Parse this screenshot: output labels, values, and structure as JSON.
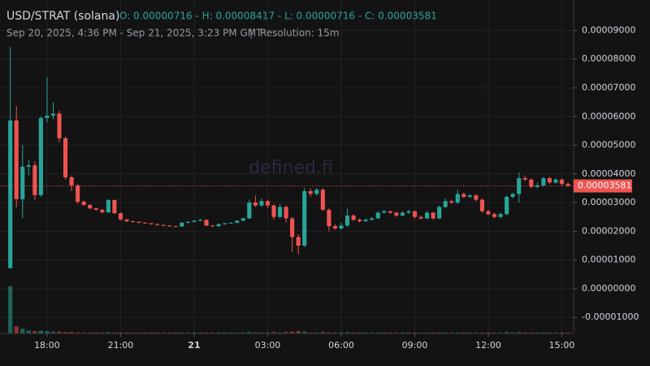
{
  "chart_data": {
    "type": "candlestick",
    "title": "USD/STRAT (solana)",
    "ohlc_text": "O: 0.00000716 - H: 0.00008417 - L: 0.00000716 - C: 0.00003581",
    "range_text": "Sep 20, 2025, 4:36 PM - Sep 21, 2025, 3:23 PM GMT",
    "separator": "|",
    "resolution": "Resolution: 15m",
    "watermark": "defined.fi",
    "up_color": "#26a69a",
    "down_color": "#ef5350",
    "grid": true,
    "x": [
      16.5,
      16.75,
      17,
      17.25,
      17.5,
      17.75,
      18,
      18.25,
      18.5,
      18.75,
      19,
      19.25,
      19.5,
      19.75,
      20,
      20.25,
      20.5,
      20.75,
      21,
      21.25,
      21.5,
      21.75,
      22,
      22.25,
      22.5,
      22.75,
      23,
      23.25,
      23.5,
      23.75,
      24,
      24.25,
      24.5,
      24.75,
      25,
      25.25,
      25.5,
      25.75,
      26,
      26.25,
      26.5,
      26.75,
      27,
      27.25,
      27.5,
      27.75,
      28,
      28.25,
      28.5,
      28.75,
      29,
      29.25,
      29.5,
      29.75,
      30,
      30.25,
      30.5,
      30.75,
      31,
      31.25,
      31.5,
      31.75,
      32,
      32.25,
      32.5,
      32.75,
      33,
      33.25,
      33.5,
      33.75,
      34,
      34.25,
      34.5,
      34.75,
      35,
      35.25,
      35.5,
      35.75,
      36,
      36.25,
      36.5,
      36.75,
      37,
      37.25,
      37.5,
      37.75,
      38,
      38.25,
      38.5,
      38.75,
      39,
      39.25
    ],
    "open": [
      7.16e-06,
      5.86e-05,
      3.12e-05,
      4.25e-05,
      4.3e-05,
      3.26e-05,
      5.95e-05,
      6.03e-05,
      6.1e-05,
      5.24e-05,
      3.88e-05,
      3.6e-05,
      3.03e-05,
      2.92e-05,
      2.8e-05,
      2.75e-05,
      2.66e-05,
      3.09e-05,
      2.63e-05,
      2.41e-05,
      2.35e-05,
      2.33e-05,
      2.3e-05,
      2.28e-05,
      2.25e-05,
      2.22e-05,
      2.2e-05,
      2.18e-05,
      2.17e-05,
      2.3e-05,
      2.33e-05,
      2.37e-05,
      2.4e-05,
      2.2e-05,
      2.18e-05,
      2.25e-05,
      2.28e-05,
      2.3e-05,
      2.37e-05,
      2.45e-05,
      3e-05,
      2.9e-05,
      3.05e-05,
      2.9e-05,
      2.5e-05,
      2.85e-05,
      2.45e-05,
      1.8e-05,
      1.5e-05,
      3.4e-05,
      3.3e-05,
      3.45e-05,
      2.75e-05,
      2.18e-05,
      2.1e-05,
      2.2e-05,
      2.55e-05,
      2.4e-05,
      2.35e-05,
      2.4e-05,
      2.45e-05,
      2.65e-05,
      2.7e-05,
      2.65e-05,
      2.55e-05,
      2.65e-05,
      2.7e-05,
      2.5e-05,
      2.45e-05,
      2.65e-05,
      2.45e-05,
      2.85e-05,
      3.05e-05,
      3e-05,
      3.3e-05,
      3.2e-05,
      3.25e-05,
      3.1e-05,
      2.7e-05,
      2.6e-05,
      2.5e-05,
      2.6e-05,
      3.2e-05,
      3.3e-05,
      3.85e-05,
      3.8e-05,
      3.55e-05,
      3.6e-05,
      3.85e-05,
      3.7e-05,
      3.8e-05,
      3.65e-05
    ],
    "high": [
      8.417e-05,
      6.37e-05,
      5e-05,
      4.5e-05,
      4.45e-05,
      6e-05,
      7.37e-05,
      6.5e-05,
      6.2e-05,
      5.3e-05,
      3.95e-05,
      3.65e-05,
      3.08e-05,
      2.95e-05,
      2.83e-05,
      2.78e-05,
      3.12e-05,
      3.11e-05,
      2.66e-05,
      2.43e-05,
      2.37e-05,
      2.35e-05,
      2.32e-05,
      2.3e-05,
      2.27e-05,
      2.24e-05,
      2.22e-05,
      2.2e-05,
      2.32e-05,
      2.35e-05,
      2.39e-05,
      2.43e-05,
      2.42e-05,
      2.22e-05,
      2.27e-05,
      2.3e-05,
      2.32e-05,
      2.39e-05,
      2.48e-05,
      3.1e-05,
      3.25e-05,
      3.15e-05,
      3.1e-05,
      2.95e-05,
      2.95e-05,
      2.9e-05,
      2.5e-05,
      1.9e-05,
      3.5e-05,
      3.5e-05,
      3.5e-05,
      3.5e-05,
      2.8e-05,
      2.25e-05,
      2.3e-05,
      2.8e-05,
      2.6e-05,
      2.45e-05,
      2.45e-05,
      2.5e-05,
      2.7e-05,
      2.75e-05,
      2.72e-05,
      2.68e-05,
      2.7e-05,
      2.75e-05,
      2.72e-05,
      2.55e-05,
      2.7e-05,
      2.68e-05,
      2.9e-05,
      3.15e-05,
      3.1e-05,
      3.45e-05,
      3.35e-05,
      3.3e-05,
      3.3e-05,
      3.15e-05,
      2.75e-05,
      2.65e-05,
      2.65e-05,
      3.25e-05,
      3.35e-05,
      4.05e-05,
      3.95e-05,
      3.85e-05,
      3.7e-05,
      3.9e-05,
      3.9e-05,
      3.85e-05,
      3.85e-05,
      3.7e-05
    ],
    "low": [
      7.16e-06,
      2.83e-05,
      2.46e-05,
      3.95e-05,
      3.1e-05,
      3.2e-05,
      5.8e-05,
      5.9e-05,
      5.1e-05,
      3.8e-05,
      3.4e-05,
      2.95e-05,
      2.88e-05,
      2.76e-05,
      2.72e-05,
      2.62e-05,
      2.64e-05,
      2.6e-05,
      2.38e-05,
      2.32e-05,
      2.31e-05,
      2.28e-05,
      2.26e-05,
      2.23e-05,
      2.2e-05,
      2.18e-05,
      2.16e-05,
      2.15e-05,
      2.15e-05,
      2.28e-05,
      2.31e-05,
      2.35e-05,
      2.18e-05,
      2.15e-05,
      2.16e-05,
      2.23e-05,
      2.26e-05,
      2.28e-05,
      2.35e-05,
      2.43e-05,
      2.85e-05,
      2.85e-05,
      2.8e-05,
      2.4e-05,
      2.45e-05,
      2.3e-05,
      1.27e-05,
      1.2e-05,
      1.45e-05,
      3.2e-05,
      3.25e-05,
      2.7e-05,
      2e-05,
      2.05e-05,
      2.05e-05,
      2.15e-05,
      2.35e-05,
      2.3e-05,
      2.33e-05,
      2.38e-05,
      2.43e-05,
      2.62e-05,
      2.6e-05,
      2.5e-05,
      2.52e-05,
      2.6e-05,
      2.45e-05,
      2.4e-05,
      2.42e-05,
      2.4e-05,
      2.43e-05,
      2.8e-05,
      2.95e-05,
      2.95e-05,
      3.15e-05,
      3.15e-05,
      3.05e-05,
      2.65e-05,
      2.55e-05,
      2.45e-05,
      2.45e-05,
      2.55e-05,
      3.15e-05,
      3e-05,
      3.75e-05,
      3.5e-05,
      3.5e-05,
      3.55e-05,
      3.65e-05,
      3.65e-05,
      3.6e-05,
      3.55e-05
    ],
    "close": [
      5.86e-05,
      3.12e-05,
      4.25e-05,
      4.3e-05,
      3.26e-05,
      5.95e-05,
      6.03e-05,
      6.1e-05,
      5.24e-05,
      3.88e-05,
      3.6e-05,
      3.03e-05,
      2.92e-05,
      2.8e-05,
      2.75e-05,
      2.66e-05,
      3.09e-05,
      2.63e-05,
      2.41e-05,
      2.35e-05,
      2.33e-05,
      2.3e-05,
      2.28e-05,
      2.25e-05,
      2.22e-05,
      2.2e-05,
      2.18e-05,
      2.17e-05,
      2.3e-05,
      2.33e-05,
      2.37e-05,
      2.4e-05,
      2.2e-05,
      2.18e-05,
      2.25e-05,
      2.28e-05,
      2.3e-05,
      2.37e-05,
      2.45e-05,
      3e-05,
      2.9e-05,
      3.05e-05,
      2.9e-05,
      2.5e-05,
      2.85e-05,
      2.45e-05,
      1.8e-05,
      1.5e-05,
      3.4e-05,
      3.3e-05,
      3.45e-05,
      2.75e-05,
      2.18e-05,
      2.1e-05,
      2.2e-05,
      2.55e-05,
      2.4e-05,
      2.35e-05,
      2.4e-05,
      2.45e-05,
      2.65e-05,
      2.7e-05,
      2.65e-05,
      2.55e-05,
      2.65e-05,
      2.7e-05,
      2.5e-05,
      2.45e-05,
      2.65e-05,
      2.45e-05,
      2.85e-05,
      3.05e-05,
      3e-05,
      3.3e-05,
      3.2e-05,
      3.25e-05,
      3.1e-05,
      2.7e-05,
      2.6e-05,
      2.5e-05,
      2.6e-05,
      3.2e-05,
      3.3e-05,
      3.85e-05,
      3.8e-05,
      3.55e-05,
      3.6e-05,
      3.85e-05,
      3.7e-05,
      3.8e-05,
      3.65e-05,
      3.581e-05
    ],
    "volume": [
      100,
      15,
      10,
      6,
      5,
      6,
      5,
      4,
      4,
      3,
      3,
      2,
      2,
      2,
      2,
      2,
      3,
      2,
      2,
      2,
      2,
      2,
      2,
      2,
      2,
      2,
      2,
      2,
      2,
      2,
      2,
      2,
      2,
      2,
      2,
      2,
      2,
      2,
      2,
      3,
      2,
      2,
      2,
      3,
      2,
      3,
      4,
      5,
      4,
      2,
      2,
      3,
      2,
      2,
      2,
      3,
      2,
      2,
      2,
      2,
      2,
      2,
      2,
      2,
      2,
      2,
      2,
      2,
      2,
      2,
      2,
      2,
      2,
      2,
      2,
      2,
      2,
      2,
      2,
      2,
      2,
      3,
      2,
      3,
      2,
      2,
      2,
      2,
      2,
      2,
      2,
      2
    ],
    "last_price": {
      "value": 3.581e-05,
      "label": "0.00003581"
    },
    "xlim": [
      16.08,
      39.48
    ],
    "xticks": [
      {
        "value": 18,
        "label": "18:00"
      },
      {
        "value": 21,
        "label": "21:00"
      },
      {
        "value": 24,
        "label": "21"
      },
      {
        "value": 27,
        "label": "03:00"
      },
      {
        "value": 30,
        "label": "06:00"
      },
      {
        "value": 33,
        "label": "09:00"
      },
      {
        "value": 36,
        "label": "12:00"
      },
      {
        "value": 39,
        "label": "15:00"
      }
    ],
    "ylim": [
      -1.56e-05,
      0.0001006
    ],
    "yticks": [
      {
        "value": 9e-05,
        "label": "0.00009000"
      },
      {
        "value": 8e-05,
        "label": "0.00008000"
      },
      {
        "value": 7e-05,
        "label": "0.00007000"
      },
      {
        "value": 6e-05,
        "label": "0.00006000"
      },
      {
        "value": 5e-05,
        "label": "0.00005000"
      },
      {
        "value": 4e-05,
        "label": "0.00004000"
      },
      {
        "value": 3e-05,
        "label": "0.00003000"
      },
      {
        "value": 2e-05,
        "label": "0.00002000"
      },
      {
        "value": 1e-05,
        "label": "0.00001000"
      },
      {
        "value": 0,
        "label": "0.00000000"
      },
      {
        "value": -1e-05,
        "label": "-0.00001000"
      }
    ]
  }
}
